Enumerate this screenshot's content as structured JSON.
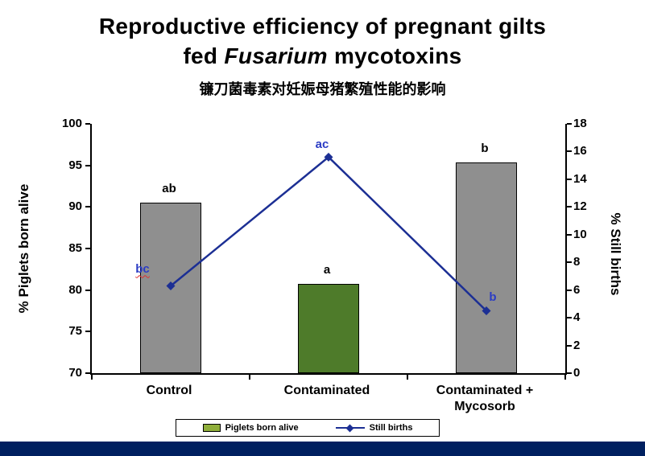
{
  "title": {
    "line1": "Reproductive efficiency of pregnant gilts",
    "line2_pre": "fed ",
    "line2_italic": "Fusarium",
    "line2_post": " mycotoxins",
    "subtitle": "镰刀菌毒素对妊娠母猪繁殖性能的影响"
  },
  "chart_data": {
    "type": "bar-line-combo",
    "categories": [
      "Control",
      "Contaminated",
      "Contaminated + Mycosorb"
    ],
    "series": [
      {
        "name": "Piglets born alive",
        "type": "bar",
        "axis": "left",
        "values": [
          90.5,
          80.7,
          95.4
        ],
        "point_labels": [
          "ab",
          "a",
          "b"
        ],
        "bar_colors": [
          "#8f8f8f",
          "#4e7b2a",
          "#8f8f8f"
        ],
        "legend_swatch_color": "#8fae3a"
      },
      {
        "name": "Still births",
        "type": "line",
        "axis": "right",
        "values": [
          6.3,
          15.6,
          4.5
        ],
        "point_labels": [
          "bc",
          "ac",
          "b"
        ],
        "color": "#1c2f94",
        "label_color": "#2b3cc4",
        "marker": "diamond"
      }
    ],
    "left_axis": {
      "label": "% Piglets born alive",
      "min": 70,
      "max": 100,
      "step": 5,
      "ticks": [
        100,
        95,
        90,
        85,
        80,
        75,
        70
      ]
    },
    "right_axis": {
      "label": "% Still births",
      "min": 0,
      "max": 18,
      "step": 2,
      "ticks": [
        18,
        16,
        14,
        12,
        10,
        8,
        6,
        4,
        2,
        0
      ]
    },
    "legend_position": "bottom",
    "grid": false
  },
  "footer": {
    "bar_color": "#002060"
  }
}
